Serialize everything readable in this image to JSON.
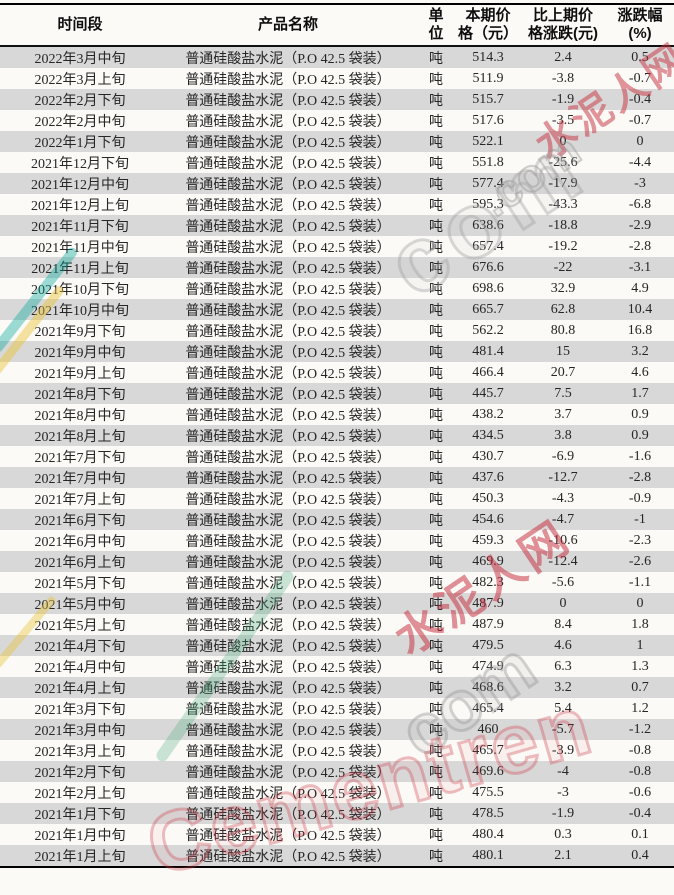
{
  "watermark": {
    "site_cn": "水泥人网",
    "site_en": "Cementren",
    "domain": ".com",
    "domain_word": "com",
    "red": "#c62d3c",
    "gray": "#9e9e9e"
  },
  "colors": {
    "row_shade": "#d8d8d8",
    "page_bg": "#fbfaf7",
    "border": "#000000",
    "text": "#262626"
  },
  "table": {
    "columns": {
      "time": "时间段",
      "product": "产品名称",
      "unit_l1": "单",
      "unit_l2": "位",
      "price_l1": "本期价",
      "price_l2": "格（元）",
      "change_l1": "比上期价",
      "change_l2": "格涨跌(元)",
      "pct_l1": "涨跌幅",
      "pct_l2": "(%)"
    },
    "product_name": "普通硅酸盐水泥（P.O 42.5 袋装）",
    "unit": "吨",
    "rows": [
      {
        "period": "2022年3月中旬",
        "price": "514.3",
        "change": "2.4",
        "pct": "0.5"
      },
      {
        "period": "2022年3月上旬",
        "price": "511.9",
        "change": "-3.8",
        "pct": "-0.7"
      },
      {
        "period": "2022年2月下旬",
        "price": "515.7",
        "change": "-1.9",
        "pct": "-0.4"
      },
      {
        "period": "2022年2月中旬",
        "price": "517.6",
        "change": "-3.5",
        "pct": "-0.7"
      },
      {
        "period": "2022年1月下旬",
        "price": "522.1",
        "change": "0",
        "pct": "0"
      },
      {
        "period": "2021年12月下旬",
        "price": "551.8",
        "change": "-25.6",
        "pct": "-4.4"
      },
      {
        "period": "2021年12月中旬",
        "price": "577.4",
        "change": "-17.9",
        "pct": "-3"
      },
      {
        "period": "2021年12月上旬",
        "price": "595.3",
        "change": "-43.3",
        "pct": "-6.8"
      },
      {
        "period": "2021年11月下旬",
        "price": "638.6",
        "change": "-18.8",
        "pct": "-2.9"
      },
      {
        "period": "2021年11月中旬",
        "price": "657.4",
        "change": "-19.2",
        "pct": "-2.8"
      },
      {
        "period": "2021年11月上旬",
        "price": "676.6",
        "change": "-22",
        "pct": "-3.1"
      },
      {
        "period": "2021年10月下旬",
        "price": "698.6",
        "change": "32.9",
        "pct": "4.9"
      },
      {
        "period": "2021年10月中旬",
        "price": "665.7",
        "change": "62.8",
        "pct": "10.4"
      },
      {
        "period": "2021年9月下旬",
        "price": "562.2",
        "change": "80.8",
        "pct": "16.8"
      },
      {
        "period": "2021年9月中旬",
        "price": "481.4",
        "change": "15",
        "pct": "3.2"
      },
      {
        "period": "2021年9月上旬",
        "price": "466.4",
        "change": "20.7",
        "pct": "4.6"
      },
      {
        "period": "2021年8月下旬",
        "price": "445.7",
        "change": "7.5",
        "pct": "1.7"
      },
      {
        "period": "2021年8月中旬",
        "price": "438.2",
        "change": "3.7",
        "pct": "0.9"
      },
      {
        "period": "2021年8月上旬",
        "price": "434.5",
        "change": "3.8",
        "pct": "0.9"
      },
      {
        "period": "2021年7月下旬",
        "price": "430.7",
        "change": "-6.9",
        "pct": "-1.6"
      },
      {
        "period": "2021年7月中旬",
        "price": "437.6",
        "change": "-12.7",
        "pct": "-2.8"
      },
      {
        "period": "2021年7月上旬",
        "price": "450.3",
        "change": "-4.3",
        "pct": "-0.9"
      },
      {
        "period": "2021年6月下旬",
        "price": "454.6",
        "change": "-4.7",
        "pct": "-1"
      },
      {
        "period": "2021年6月中旬",
        "price": "459.3",
        "change": "-10.6",
        "pct": "-2.3"
      },
      {
        "period": "2021年6月上旬",
        "price": "469.9",
        "change": "-12.4",
        "pct": "-2.6"
      },
      {
        "period": "2021年5月下旬",
        "price": "482.3",
        "change": "-5.6",
        "pct": "-1.1"
      },
      {
        "period": "2021年5月中旬",
        "price": "487.9",
        "change": "0",
        "pct": "0"
      },
      {
        "period": "2021年5月上旬",
        "price": "487.9",
        "change": "8.4",
        "pct": "1.8"
      },
      {
        "period": "2021年4月下旬",
        "price": "479.5",
        "change": "4.6",
        "pct": "1"
      },
      {
        "period": "2021年4月中旬",
        "price": "474.9",
        "change": "6.3",
        "pct": "1.3"
      },
      {
        "period": "2021年4月上旬",
        "price": "468.6",
        "change": "3.2",
        "pct": "0.7"
      },
      {
        "period": "2021年3月下旬",
        "price": "465.4",
        "change": "5.4",
        "pct": "1.2"
      },
      {
        "period": "2021年3月中旬",
        "price": "460",
        "change": "-5.7",
        "pct": "-1.2"
      },
      {
        "period": "2021年3月上旬",
        "price": "465.7",
        "change": "-3.9",
        "pct": "-0.8"
      },
      {
        "period": "2021年2月下旬",
        "price": "469.6",
        "change": "-4",
        "pct": "-0.8"
      },
      {
        "period": "2021年2月上旬",
        "price": "475.5",
        "change": "-3",
        "pct": "-0.6"
      },
      {
        "period": "2021年1月下旬",
        "price": "478.5",
        "change": "-1.9",
        "pct": "-0.4"
      },
      {
        "period": "2021年1月中旬",
        "price": "480.4",
        "change": "0.3",
        "pct": "0.1"
      },
      {
        "period": "2021年1月上旬",
        "price": "480.1",
        "change": "2.1",
        "pct": "0.4"
      }
    ]
  }
}
